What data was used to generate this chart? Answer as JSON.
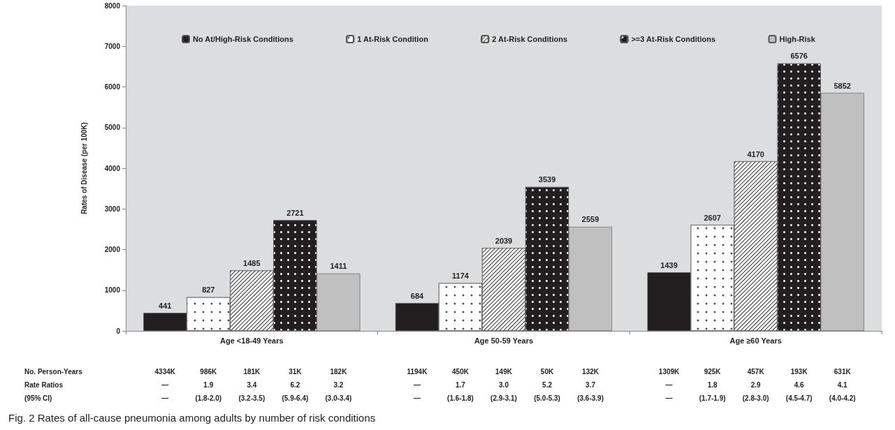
{
  "chart_data": {
    "type": "bar",
    "ylabel": "Rates of Disease (per 100K)",
    "categories": [
      "Age <18-49 Years",
      "Age 50-59 Years",
      "Age ≥60 Years"
    ],
    "series": [
      {
        "name": "No At/High-Risk Conditions",
        "color": "#231f20",
        "values": [
          441,
          684,
          1439
        ]
      },
      {
        "name": "1 At-Risk Condition",
        "color": "#ffffff",
        "values": [
          827,
          1174,
          2607
        ]
      },
      {
        "name": "2 At-Risk Conditions",
        "color": "#ffffff",
        "values": [
          1485,
          2039,
          4170
        ]
      },
      {
        "name": ">=3 At-Risk Conditions",
        "color": "#231f20",
        "values": [
          2721,
          3539,
          6576
        ]
      },
      {
        "name": "High-Risk",
        "color": "#c0c0c0",
        "values": [
          1411,
          2559,
          5852
        ]
      }
    ],
    "ylim": [
      0,
      8000
    ],
    "yticks": [
      0,
      1000,
      2000,
      3000,
      4000,
      5000,
      6000,
      7000,
      8000
    ],
    "data_labels": true,
    "legend": "top",
    "annotations": [
      "No. Person-Years",
      "Rate Ratios",
      "(95% CI)",
      "4334K",
      "986K",
      "181K",
      "31K",
      "182K",
      "1194K",
      "450K",
      "149K",
      "50K",
      "132K",
      "1309K",
      "925K",
      "457K",
      "193K",
      "631K",
      "—",
      "1.9",
      "3.4",
      "6.2",
      "3.2",
      "—",
      "1.7",
      "3.0",
      "5.2",
      "3.7",
      "—",
      "1.8",
      "2.9",
      "4.6",
      "4.1",
      "—",
      "(1.8-2.0)",
      "(3.2-3.5)",
      "(5.9-6.4)",
      "(3.0-3.4)",
      "—",
      "(1.6-1.8)",
      "(2.9-3.1)",
      "(5.0-5.3)",
      "(3.6-3.9)",
      "—",
      "(1.7-1.9)",
      "(2.8-3.0)",
      "(4.5-4.7)",
      "(4.0-4.2)",
      "Fig. 2 Rates of all-cause pneumonia among adults by number of risk conditions"
    ]
  }
}
